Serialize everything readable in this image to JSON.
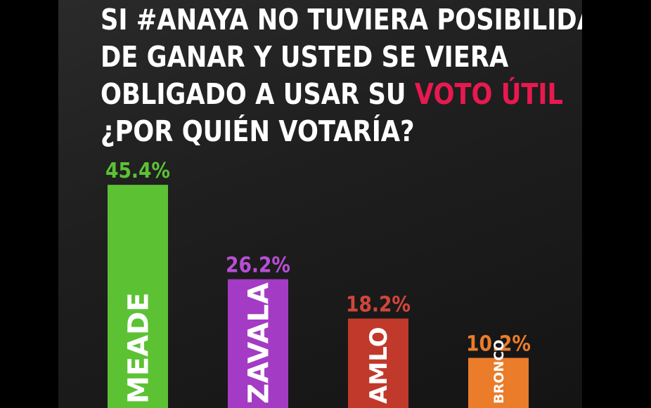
{
  "title": {
    "line1": "SI #ANAYA NO TUVIERA POSIBILIDADES",
    "line2": "DE GANAR Y USTED SE VIERA",
    "line3_prefix": "OBLIGADO A USAR SU ",
    "line3_highlight": "VOTO ÚTIL",
    "line4": "¿POR QUIÉN VOTARÍA?"
  },
  "colors": {
    "highlight": "#e8194f",
    "meade": "#5cc234",
    "zavala": "#a43bc4",
    "amlo": "#c0392b",
    "bronco": "#ea7c2a"
  },
  "chart_data": {
    "type": "bar",
    "categories": [
      "MEADE",
      "ZAVALA",
      "AMLO",
      "BRONCO"
    ],
    "values": [
      45.4,
      26.2,
      18.2,
      10.2
    ],
    "value_labels": [
      "45.4%",
      "26.2%",
      "18.2%",
      "10.2%"
    ],
    "colors": [
      "#5cc234",
      "#a43bc4",
      "#c0392b",
      "#ea7c2a"
    ],
    "label_colors": [
      "#5cc234",
      "#b84fd6",
      "#d1463a",
      "#ea7c2a"
    ],
    "ylim": [
      0,
      50
    ],
    "grid": false,
    "legend": "none"
  }
}
